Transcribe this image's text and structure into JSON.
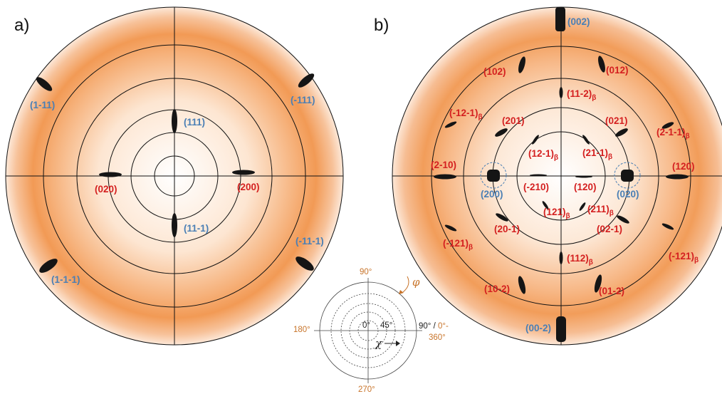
{
  "colors": {
    "blue_label": "#4a7fb5",
    "red_label": "#d42020",
    "orange_axis": "#c8742a",
    "pole_fill": "#f08a30",
    "ring_stroke": "#111111"
  },
  "panel_a": {
    "label": "a)",
    "labels": [
      {
        "text": "(1-11)",
        "color": "blue"
      },
      {
        "text": "(-111)",
        "color": "blue"
      },
      {
        "text": "(111)",
        "color": "blue"
      },
      {
        "text": "(020)",
        "color": "red"
      },
      {
        "text": "(200)",
        "color": "red"
      },
      {
        "text": "(11-1)",
        "color": "blue"
      },
      {
        "text": "(-11-1)",
        "color": "blue"
      },
      {
        "text": "(1-1-1)",
        "color": "blue"
      }
    ]
  },
  "panel_b": {
    "label": "b)",
    "beta_subscript": "β",
    "labels": [
      {
        "text": "(002)",
        "color": "blue"
      },
      {
        "text": "(102)",
        "color": "red"
      },
      {
        "text": "(012)",
        "color": "red"
      },
      {
        "text": "(11-2)",
        "color": "red",
        "beta": true
      },
      {
        "text": "(-12-1)",
        "color": "red",
        "beta": true
      },
      {
        "text": "(201)",
        "color": "red"
      },
      {
        "text": "(021)",
        "color": "red"
      },
      {
        "text": "(2-1-1)",
        "color": "red",
        "beta": true
      },
      {
        "text": "(12-1)",
        "color": "red",
        "beta": true
      },
      {
        "text": "(21-1)",
        "color": "red",
        "beta": true
      },
      {
        "text": "(2-10)",
        "color": "red"
      },
      {
        "text": "(120)",
        "color": "red"
      },
      {
        "text": "(200)",
        "color": "blue"
      },
      {
        "text": "(-210)",
        "color": "red"
      },
      {
        "text": "(120)",
        "color": "red"
      },
      {
        "text": "(020)",
        "color": "blue"
      },
      {
        "text": "(121)",
        "color": "red",
        "beta": true
      },
      {
        "text": "(211)",
        "color": "red",
        "beta": true
      },
      {
        "text": "(20-1)",
        "color": "red"
      },
      {
        "text": "(02-1)",
        "color": "red"
      },
      {
        "text": "(-121)",
        "color": "red",
        "beta": true
      },
      {
        "text": "(112)",
        "color": "red",
        "beta": true
      },
      {
        "text": "(-121)",
        "color": "red",
        "beta": true
      },
      {
        "text": "(10-2)",
        "color": "red"
      },
      {
        "text": "(01-2)",
        "color": "red"
      },
      {
        "text": "(00-2)",
        "color": "blue"
      }
    ]
  },
  "legend": {
    "top": "90°",
    "left": "180°",
    "right_a": "90° / ",
    "right_b": "0°-",
    "right_c": "360°",
    "bottom": "270°",
    "center": "0°",
    "ring": "45°",
    "phi": "φ",
    "chi": "χ"
  }
}
